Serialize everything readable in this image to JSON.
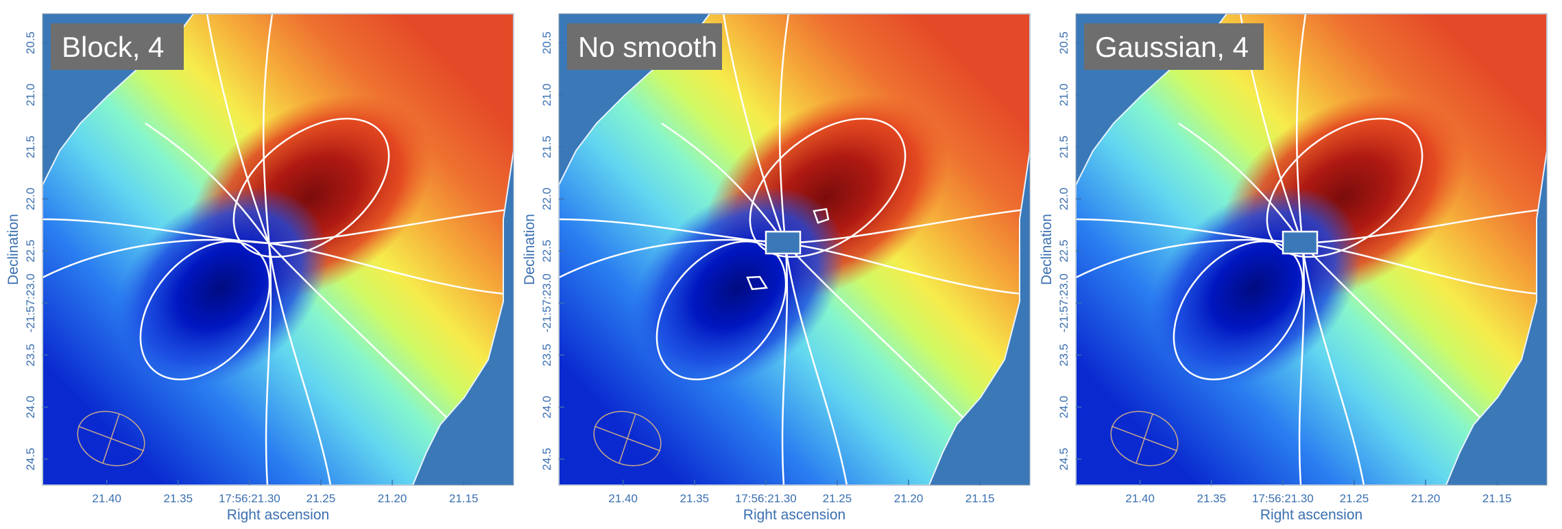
{
  "chart_data": [
    {
      "type": "heatmap",
      "label": "Block, 4",
      "xlabel": "Right ascension",
      "ylabel": "Declination",
      "x_ticks": [
        "21.40",
        "21.35",
        "17:56:21.30",
        "21.25",
        "21.20",
        "21.15"
      ],
      "y_ticks": [
        "20.5",
        "21.0",
        "21.5",
        "22.0",
        "22.5",
        "-21:57:23.0",
        "23.5",
        "24.0",
        "24.5"
      ],
      "x_tick_values": [
        21.4,
        21.35,
        21.3,
        21.25,
        21.2,
        21.15
      ],
      "y_tick_values": [
        20.5,
        21.0,
        21.5,
        22.0,
        22.5,
        23.0,
        23.5,
        24.0,
        24.5
      ],
      "xlim": [
        21.445,
        21.115
      ],
      "ylim": [
        24.75,
        20.22
      ],
      "colormap": "jet",
      "background_color": "#3a78b8",
      "contour_color": "#ffffff",
      "beam_ellipse": true,
      "smoothing": "block"
    },
    {
      "type": "heatmap",
      "label": "No smooth",
      "xlabel": "Right ascension",
      "ylabel": "Declination",
      "x_ticks": [
        "21.40",
        "21.35",
        "17:56:21.30",
        "21.25",
        "21.20",
        "21.15"
      ],
      "y_ticks": [
        "20.5",
        "21.0",
        "21.5",
        "22.0",
        "22.5",
        "-21:57:23.0",
        "23.5",
        "24.0",
        "24.5"
      ],
      "x_tick_values": [
        21.4,
        21.35,
        21.3,
        21.25,
        21.2,
        21.15
      ],
      "y_tick_values": [
        20.5,
        21.0,
        21.5,
        22.0,
        22.5,
        23.0,
        23.5,
        24.0,
        24.5
      ],
      "xlim": [
        21.445,
        21.115
      ],
      "ylim": [
        24.75,
        20.22
      ],
      "colormap": "jet",
      "background_color": "#3a78b8",
      "contour_color": "#ffffff",
      "beam_ellipse": true,
      "smoothing": "none"
    },
    {
      "type": "heatmap",
      "label": "Gaussian, 4",
      "xlabel": "Right ascension",
      "ylabel": "Declination",
      "x_ticks": [
        "21.40",
        "21.35",
        "17:56:21.30",
        "21.25",
        "21.20",
        "21.15"
      ],
      "y_ticks": [
        "20.5",
        "21.0",
        "21.5",
        "22.0",
        "22.5",
        "-21:57:23.0",
        "23.5",
        "24.0",
        "24.5"
      ],
      "x_tick_values": [
        21.4,
        21.35,
        21.3,
        21.25,
        21.2,
        21.15
      ],
      "y_tick_values": [
        20.5,
        21.0,
        21.5,
        22.0,
        22.5,
        23.0,
        23.5,
        24.0,
        24.5
      ],
      "xlim": [
        21.445,
        21.115
      ],
      "ylim": [
        24.75,
        20.22
      ],
      "colormap": "jet",
      "background_color": "#3a78b8",
      "contour_color": "#ffffff",
      "beam_ellipse": true,
      "smoothing": "gaussian"
    }
  ]
}
